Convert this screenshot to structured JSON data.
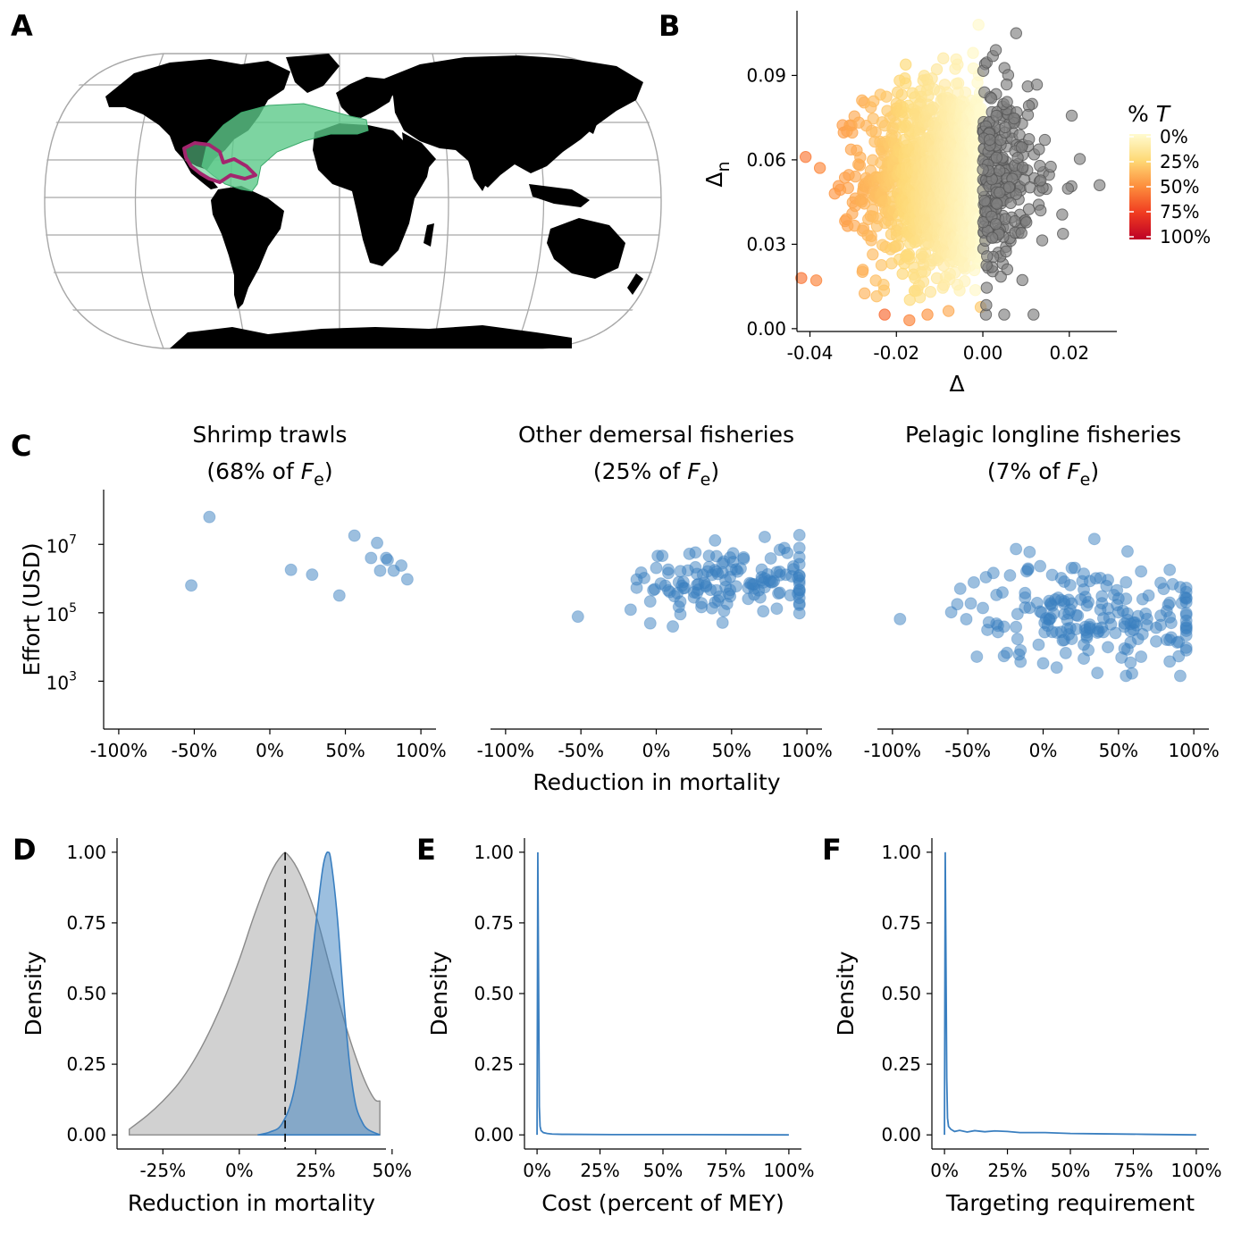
{
  "panels": {
    "A": "A",
    "B": "B",
    "C": "C",
    "D": "D",
    "E": "E",
    "F": "F"
  },
  "colors": {
    "region_fill": "#5cc98a",
    "region_outline": "#a3266e",
    "land": "#000000",
    "graticule": "#a8a8a8",
    "scatter_gray": "#7f7f7f",
    "blue": "#3a7fc0",
    "gray_density": "#bdbdbd"
  },
  "chart_data": [
    {
      "panel": "A",
      "type": "map",
      "projection": "Robinson-like world map",
      "highlight": "Gulf of Mexico / Caribbean with Atlantic extension"
    },
    {
      "panel": "B",
      "type": "scatter",
      "xlabel": "Δ",
      "ylabel": "Δ",
      "ylabel_sub": "n",
      "xlim": [
        -0.043,
        0.031
      ],
      "ylim": [
        -0.001,
        0.113
      ],
      "xticks": [
        "-0.04",
        "-0.02",
        "0.00",
        "0.02"
      ],
      "xtick_values": [
        -0.04,
        -0.02,
        0.0,
        0.02
      ],
      "yticks": [
        "0.00",
        "0.03",
        "0.06",
        "0.09"
      ],
      "ytick_values": [
        0.0,
        0.03,
        0.06,
        0.09
      ],
      "legend_title": "% ",
      "legend_title_italic": "T",
      "legend_labels": [
        "0%",
        "25%",
        "50%",
        "75%",
        "100%"
      ],
      "color_rule": "points with Δ > 0 are gray; otherwise colored by %T from light yellow (0%) to dark red (100%)",
      "n_points_approx": 1500,
      "x_mean": -0.008,
      "y_mean": 0.053,
      "highlighted_points": [
        [
          -0.042,
          0.018
        ],
        [
          -0.017,
          0.003
        ],
        [
          0.027,
          0.051
        ],
        [
          0.003,
          0.099
        ],
        [
          -0.001,
          0.108
        ]
      ]
    },
    {
      "panel": "C",
      "type": "scatter",
      "ylabel": "Effort (USD)",
      "xlabel": "Reduction in mortality",
      "xticks": [
        "-100%",
        "-50%",
        "0%",
        "50%",
        "100%"
      ],
      "xtick_values": [
        -100,
        -50,
        0,
        50,
        100
      ],
      "xlim": [
        -110,
        110
      ],
      "yticks_base": [
        "10",
        "10",
        "10"
      ],
      "yticks_exp": [
        "3",
        "5",
        "7"
      ],
      "ytick_values": [
        1000,
        100000,
        10000000
      ],
      "ylim_log10": [
        1.6,
        8.6
      ],
      "facets": [
        {
          "title1": "Shrimp trawls",
          "title2_prefix": "(68% of ",
          "title2_var": "F",
          "title2_sub": "e",
          "title2_suffix": ")",
          "points": [
            [
              -40,
              63000000
            ],
            [
              -52,
              630000
            ],
            [
              14,
              1800000
            ],
            [
              28,
              1300000
            ],
            [
              46,
              320000
            ],
            [
              56,
              18000000
            ],
            [
              67,
              4000000
            ],
            [
              71,
              11000000
            ],
            [
              73,
              1700000
            ],
            [
              77,
              4000000
            ],
            [
              78,
              3500000
            ],
            [
              82,
              1700000
            ],
            [
              87,
              2400000
            ],
            [
              91,
              950000
            ]
          ]
        },
        {
          "title1": "Other demersal fisheries",
          "title2_prefix": "(25% of ",
          "title2_var": "F",
          "title2_sub": "e",
          "title2_suffix": ")",
          "points": []
        },
        {
          "title1": "Pelagic longline fisheries",
          "title2_prefix": "(7% of ",
          "title2_var": "F",
          "title2_sub": "e",
          "title2_suffix": ")",
          "points": []
        }
      ]
    },
    {
      "panel": "D",
      "type": "area",
      "xlabel": "Reduction in mortality",
      "ylabel": "Density",
      "xticks": [
        "-25%",
        "0%",
        "25%",
        "50%"
      ],
      "xtick_values": [
        -25,
        0,
        25,
        50
      ],
      "xlim": [
        -40,
        48
      ],
      "yticks": [
        "0.00",
        "0.25",
        "0.50",
        "0.75",
        "1.00"
      ],
      "ytick_values": [
        0,
        0.25,
        0.5,
        0.75,
        1.0
      ],
      "ylim": [
        -0.05,
        1.05
      ],
      "vline": 15,
      "series": [
        {
          "x": [
            -36,
            -30,
            -25,
            -20,
            -15,
            -10,
            -5,
            0,
            5,
            10,
            14,
            16,
            20,
            25,
            30,
            35,
            40,
            44,
            46
          ],
          "y": [
            0.02,
            0.07,
            0.12,
            0.18,
            0.26,
            0.36,
            0.48,
            0.62,
            0.78,
            0.92,
            0.99,
            0.99,
            0.92,
            0.78,
            0.58,
            0.38,
            0.22,
            0.13,
            0.12
          ]
        },
        {
          "x": [
            6,
            10,
            14,
            18,
            22,
            25,
            27,
            28,
            29,
            30,
            32,
            34,
            36,
            38,
            40,
            42,
            46
          ],
          "y": [
            0.0,
            0.01,
            0.04,
            0.16,
            0.45,
            0.74,
            0.92,
            0.98,
            1.0,
            0.97,
            0.78,
            0.5,
            0.26,
            0.11,
            0.05,
            0.02,
            0.0
          ]
        }
      ]
    },
    {
      "panel": "E",
      "type": "line",
      "xlabel": "Cost (percent of MEY)",
      "ylabel": "Density",
      "xticks": [
        "0%",
        "25%",
        "50%",
        "75%",
        "100%"
      ],
      "xtick_values": [
        0,
        25,
        50,
        75,
        100
      ],
      "xlim": [
        -5,
        105
      ],
      "yticks": [
        "0.00",
        "0.25",
        "0.50",
        "0.75",
        "1.00"
      ],
      "ytick_values": [
        0,
        0.25,
        0.5,
        0.75,
        1.0
      ],
      "ylim": [
        -0.05,
        1.05
      ],
      "x": [
        0,
        0.3,
        0.6,
        0.9,
        1.2,
        1.6,
        2.5,
        4,
        6,
        10,
        30,
        60,
        100
      ],
      "y": [
        0.0,
        1.0,
        0.55,
        0.1,
        0.03,
        0.015,
        0.008,
        0.005,
        0.003,
        0.002,
        0.001,
        0.001,
        0.0
      ]
    },
    {
      "panel": "F",
      "type": "line",
      "xlabel": "Targeting requirement",
      "ylabel": "Density",
      "xticks": [
        "0%",
        "25%",
        "50%",
        "75%",
        "100%"
      ],
      "xtick_values": [
        0,
        25,
        50,
        75,
        100
      ],
      "xlim": [
        -5,
        105
      ],
      "yticks": [
        "0.00",
        "0.25",
        "0.50",
        "0.75",
        "1.00"
      ],
      "ytick_values": [
        0,
        0.25,
        0.5,
        0.75,
        1.0
      ],
      "ylim": [
        -0.05,
        1.05
      ],
      "x": [
        0,
        0.3,
        0.6,
        0.9,
        1.2,
        1.6,
        2.5,
        4,
        6,
        9,
        12,
        16,
        20,
        25,
        30,
        40,
        50,
        60,
        80,
        100
      ],
      "y": [
        0.0,
        1.0,
        0.6,
        0.2,
        0.06,
        0.03,
        0.02,
        0.012,
        0.016,
        0.01,
        0.015,
        0.011,
        0.014,
        0.012,
        0.008,
        0.008,
        0.005,
        0.004,
        0.002,
        0.0
      ]
    }
  ]
}
